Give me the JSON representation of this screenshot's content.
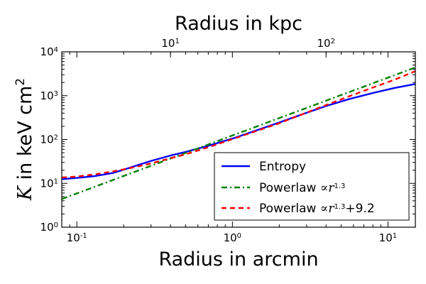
{
  "chart_data": {
    "type": "line",
    "title": "",
    "xlabel": "Radius in arcmin",
    "x2label": "Radius in kpc",
    "ylabel": {
      "symbol": "K",
      "text": " in keV cm",
      "sup": "2"
    },
    "xscale": "log",
    "yscale": "log",
    "xlim": [
      0.08,
      15
    ],
    "ylim": [
      1,
      10000
    ],
    "x_ticks": [
      {
        "value": 0.1,
        "base": "10",
        "exp": "-1"
      },
      {
        "value": 1,
        "base": "10",
        "exp": "0"
      },
      {
        "value": 10,
        "base": "10",
        "exp": "1"
      }
    ],
    "x2_ticks": [
      {
        "arcmin": 0.4,
        "base": "10",
        "exp": "1"
      },
      {
        "arcmin": 4.0,
        "base": "10",
        "exp": "2"
      }
    ],
    "y_ticks": [
      {
        "value": 1,
        "base": "10",
        "exp": "0"
      },
      {
        "value": 10,
        "base": "10",
        "exp": "1"
      },
      {
        "value": 100,
        "base": "10",
        "exp": "2"
      },
      {
        "value": 1000,
        "base": "10",
        "exp": "3"
      },
      {
        "value": 10000,
        "base": "10",
        "exp": "4"
      }
    ],
    "legend": {
      "position": "lower-right",
      "entries": [
        {
          "series": 0,
          "text": "Entropy",
          "math": ""
        },
        {
          "series": 1,
          "text": "Powerlaw ",
          "math": "∝r",
          "sup": "1.3",
          "tail": ""
        },
        {
          "series": 2,
          "text": "Powerlaw ",
          "math": "∝r",
          "sup": "1.3",
          "tail": "+9.2"
        }
      ]
    },
    "series": [
      {
        "name": "Entropy",
        "color": "#0000ff",
        "style": "solid",
        "x": [
          0.08,
          0.1,
          0.13,
          0.17,
          0.2,
          0.25,
          0.3,
          0.4,
          0.5,
          0.7,
          1.0,
          1.4,
          2.0,
          2.8,
          4.0,
          5.6,
          8.0,
          11.0,
          15.0
        ],
        "y": [
          12.5,
          13.3,
          14.6,
          17.2,
          20.5,
          26.5,
          32.5,
          43.0,
          52.0,
          72.0,
          105,
          158,
          245,
          375,
          580,
          830,
          1150,
          1500,
          1850
        ]
      },
      {
        "name": "Powerlaw ∝r^1.3",
        "color": "#008000",
        "style": "dashdot",
        "x": [
          0.08,
          15.0
        ],
        "y": [
          4.4,
          4400
        ]
      },
      {
        "name": "Powerlaw ∝r^1.3+9.2",
        "color": "#ff0000",
        "style": "dashed",
        "x": [
          0.08,
          0.1,
          0.13,
          0.17,
          0.2,
          0.25,
          0.3,
          0.4,
          0.5,
          0.7,
          1.0,
          1.4,
          2.0,
          2.8,
          4.0,
          5.6,
          8.0,
          11.0,
          15.0
        ],
        "y": [
          13.6,
          14.3,
          16.0,
          18.6,
          20.8,
          24.6,
          28.5,
          37.3,
          46.1,
          66.4,
          102,
          153,
          235,
          375,
          610,
          960,
          1530,
          2310,
          3620
        ]
      }
    ]
  }
}
